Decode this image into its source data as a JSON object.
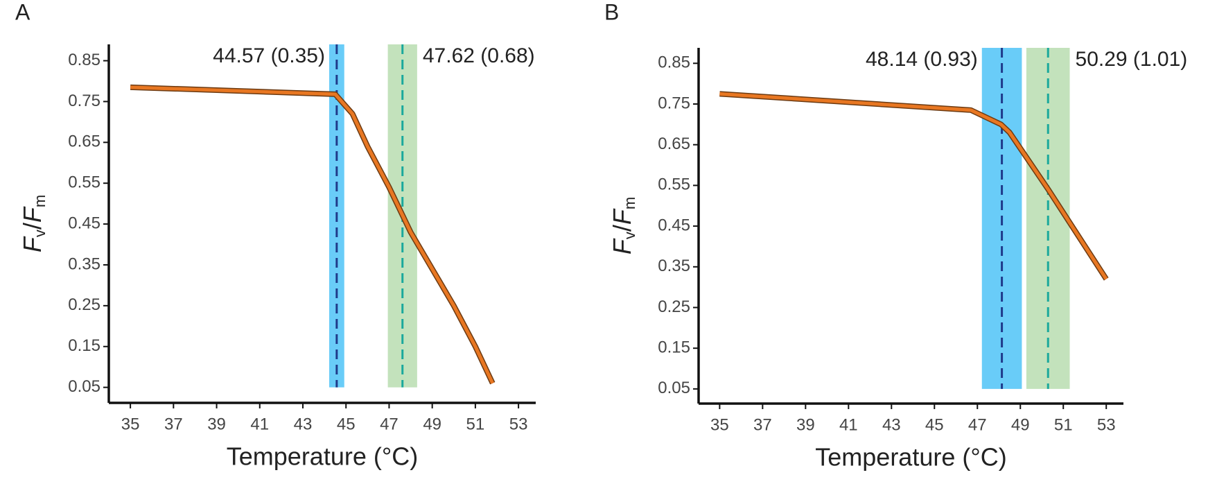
{
  "chart_data": [
    {
      "type": "line",
      "panel": "A",
      "x_label": "Temperature (°C)",
      "y_label": "Fv/Fm",
      "x": [
        35,
        44.5,
        45.3,
        46,
        47,
        48,
        49,
        50,
        51,
        51.8
      ],
      "series": [
        {
          "color": "#e87722",
          "values": [
            0.785,
            0.768,
            0.72,
            0.64,
            0.54,
            0.43,
            0.34,
            0.25,
            0.15,
            0.06
          ]
        }
      ],
      "xlim": [
        34.0,
        53.8
      ],
      "xticks": [
        35,
        37,
        39,
        41,
        43,
        45,
        47,
        49,
        51,
        53
      ],
      "ylim": [
        0.012,
        0.89
      ],
      "yticks": [
        0.05,
        0.15,
        0.25,
        0.35,
        0.45,
        0.55,
        0.65,
        0.75,
        0.85
      ],
      "annotations": [
        {
          "value": 44.57,
          "ci": 0.35,
          "label": "44.57 (0.35)",
          "color": "#1f3a8a",
          "band_color": "#4fc3f7",
          "side": "left"
        },
        {
          "value": 47.62,
          "ci": 0.68,
          "label": "47.62 (0.68)",
          "color": "#1aa89c",
          "band_color": "#b9ddb0",
          "side": "right"
        }
      ]
    },
    {
      "type": "line",
      "panel": "B",
      "x_label": "Temperature (°C)",
      "y_label": "Fv/Fm",
      "x": [
        35,
        46.7,
        48.1,
        48.5,
        50.3,
        53
      ],
      "series": [
        {
          "color": "#e87722",
          "values": [
            0.775,
            0.735,
            0.7,
            0.68,
            0.54,
            0.32
          ]
        }
      ],
      "xlim": [
        34.02,
        53.8
      ],
      "xticks": [
        35,
        37,
        39,
        41,
        43,
        45,
        47,
        49,
        51,
        53
      ],
      "ylim": [
        0.014,
        0.888
      ],
      "yticks": [
        0.05,
        0.15,
        0.25,
        0.35,
        0.45,
        0.55,
        0.65,
        0.75,
        0.85
      ],
      "annotations": [
        {
          "value": 48.14,
          "ci": 0.93,
          "label": "48.14 (0.93)",
          "color": "#1f3a8a",
          "band_color": "#4fc3f7",
          "side": "left"
        },
        {
          "value": 50.29,
          "ci": 1.01,
          "label": "50.29 (1.01)",
          "color": "#1aa89c",
          "band_color": "#b9ddb0",
          "side": "right"
        }
      ]
    }
  ]
}
